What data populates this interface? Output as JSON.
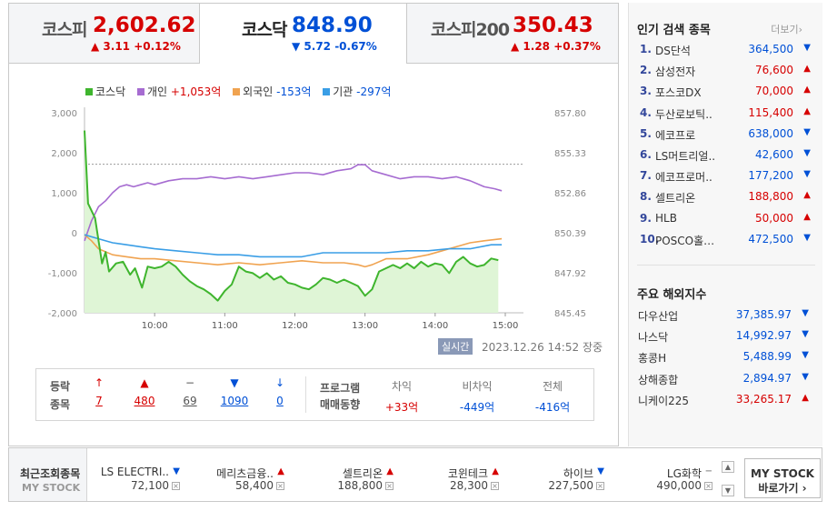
{
  "tabs": [
    {
      "name": "코스피",
      "value": "2,602.62",
      "change": "▲ 3.11 +0.12%",
      "dir": "up"
    },
    {
      "name": "코스닥",
      "value": "848.90",
      "change": "▼ 5.72 -0.67%",
      "dir": "down"
    },
    {
      "name": "코스피200",
      "value": "350.43",
      "change": "▲ 1.28 +0.37%",
      "dir": "up"
    }
  ],
  "legend": [
    {
      "label": "코스닥",
      "extra": "",
      "color": "#3fb52e"
    },
    {
      "label": "개인",
      "extra": "+1,053억",
      "color": "#a66cd1",
      "extra_dir": "up"
    },
    {
      "label": "외국인",
      "extra": "-153억",
      "color": "#f0a350",
      "extra_dir": "down"
    },
    {
      "label": "기관",
      "extra": "-297억",
      "color": "#3a9ee6",
      "extra_dir": "down"
    }
  ],
  "chart_data": {
    "type": "line",
    "left_axis": {
      "ticks": [
        "3,000",
        "2,000",
        "1,000",
        "0",
        "-1,000",
        "-2,000"
      ],
      "range": [
        -2000,
        3000
      ]
    },
    "right_axis": {
      "ticks": [
        "857.80",
        "855.33",
        "852.86",
        "850.39",
        "847.92",
        "845.45"
      ],
      "range": [
        845.45,
        857.8
      ]
    },
    "x_ticks": [
      "10:00",
      "11:00",
      "12:00",
      "13:00",
      "14:00",
      "15:00"
    ],
    "previous_close": 854.62,
    "series": [
      {
        "name": "코스닥",
        "axis": "right",
        "color": "#3fb52e",
        "values": [
          [
            9.0,
            856.7
          ],
          [
            9.05,
            852.2
          ],
          [
            9.15,
            851.3
          ],
          [
            9.25,
            848.5
          ],
          [
            9.3,
            849.2
          ],
          [
            9.35,
            848.0
          ],
          [
            9.45,
            848.5
          ],
          [
            9.55,
            848.6
          ],
          [
            9.65,
            847.8
          ],
          [
            9.72,
            848.2
          ],
          [
            9.82,
            847.0
          ],
          [
            9.9,
            848.3
          ],
          [
            10.0,
            848.2
          ],
          [
            10.1,
            848.3
          ],
          [
            10.2,
            848.6
          ],
          [
            10.3,
            848.3
          ],
          [
            10.4,
            847.8
          ],
          [
            10.5,
            847.4
          ],
          [
            10.6,
            847.1
          ],
          [
            10.7,
            846.9
          ],
          [
            10.8,
            846.6
          ],
          [
            10.9,
            846.2
          ],
          [
            11.0,
            846.8
          ],
          [
            11.1,
            847.2
          ],
          [
            11.2,
            848.3
          ],
          [
            11.3,
            848.0
          ],
          [
            11.4,
            847.9
          ],
          [
            11.5,
            847.6
          ],
          [
            11.6,
            847.9
          ],
          [
            11.7,
            847.5
          ],
          [
            11.8,
            847.7
          ],
          [
            11.9,
            847.3
          ],
          [
            12.0,
            847.2
          ],
          [
            12.1,
            847.0
          ],
          [
            12.2,
            846.9
          ],
          [
            12.3,
            847.2
          ],
          [
            12.4,
            847.6
          ],
          [
            12.5,
            847.5
          ],
          [
            12.6,
            847.3
          ],
          [
            12.7,
            847.5
          ],
          [
            12.8,
            847.3
          ],
          [
            12.9,
            847.1
          ],
          [
            13.0,
            846.5
          ],
          [
            13.1,
            846.9
          ],
          [
            13.2,
            848.0
          ],
          [
            13.3,
            848.2
          ],
          [
            13.4,
            848.4
          ],
          [
            13.5,
            848.2
          ],
          [
            13.6,
            848.5
          ],
          [
            13.7,
            848.2
          ],
          [
            13.8,
            848.6
          ],
          [
            13.9,
            848.3
          ],
          [
            14.0,
            848.5
          ],
          [
            14.1,
            848.4
          ],
          [
            14.2,
            847.9
          ],
          [
            14.3,
            848.6
          ],
          [
            14.4,
            848.9
          ],
          [
            14.5,
            848.5
          ],
          [
            14.6,
            848.3
          ],
          [
            14.7,
            848.4
          ],
          [
            14.8,
            848.8
          ],
          [
            14.9,
            848.7
          ]
        ]
      },
      {
        "name": "개인",
        "axis": "left",
        "color": "#a66cd1",
        "values": [
          [
            9.0,
            -200
          ],
          [
            9.1,
            300
          ],
          [
            9.2,
            650
          ],
          [
            9.3,
            800
          ],
          [
            9.4,
            1000
          ],
          [
            9.5,
            1150
          ],
          [
            9.6,
            1200
          ],
          [
            9.7,
            1150
          ],
          [
            9.8,
            1200
          ],
          [
            9.9,
            1250
          ],
          [
            10.0,
            1200
          ],
          [
            10.2,
            1300
          ],
          [
            10.4,
            1350
          ],
          [
            10.6,
            1350
          ],
          [
            10.8,
            1400
          ],
          [
            11.0,
            1350
          ],
          [
            11.2,
            1400
          ],
          [
            11.4,
            1350
          ],
          [
            11.6,
            1400
          ],
          [
            11.8,
            1450
          ],
          [
            12.0,
            1500
          ],
          [
            12.2,
            1500
          ],
          [
            12.4,
            1450
          ],
          [
            12.6,
            1550
          ],
          [
            12.8,
            1600
          ],
          [
            12.9,
            1700
          ],
          [
            13.0,
            1700
          ],
          [
            13.1,
            1550
          ],
          [
            13.3,
            1450
          ],
          [
            13.5,
            1350
          ],
          [
            13.7,
            1400
          ],
          [
            13.9,
            1400
          ],
          [
            14.1,
            1350
          ],
          [
            14.3,
            1400
          ],
          [
            14.5,
            1300
          ],
          [
            14.7,
            1150
          ],
          [
            14.85,
            1100
          ],
          [
            14.95,
            1050
          ]
        ]
      },
      {
        "name": "외국인",
        "axis": "left",
        "color": "#f0a350",
        "values": [
          [
            9.0,
            -50
          ],
          [
            9.1,
            -200
          ],
          [
            9.2,
            -400
          ],
          [
            9.4,
            -550
          ],
          [
            9.6,
            -600
          ],
          [
            9.8,
            -650
          ],
          [
            10.0,
            -650
          ],
          [
            10.3,
            -700
          ],
          [
            10.6,
            -750
          ],
          [
            10.9,
            -800
          ],
          [
            11.2,
            -750
          ],
          [
            11.5,
            -800
          ],
          [
            11.8,
            -750
          ],
          [
            12.1,
            -700
          ],
          [
            12.4,
            -750
          ],
          [
            12.7,
            -750
          ],
          [
            12.9,
            -800
          ],
          [
            13.0,
            -850
          ],
          [
            13.1,
            -800
          ],
          [
            13.3,
            -650
          ],
          [
            13.6,
            -650
          ],
          [
            13.9,
            -550
          ],
          [
            14.1,
            -450
          ],
          [
            14.3,
            -350
          ],
          [
            14.5,
            -250
          ],
          [
            14.7,
            -200
          ],
          [
            14.95,
            -150
          ]
        ]
      },
      {
        "name": "기관",
        "axis": "left",
        "color": "#3a9ee6",
        "values": [
          [
            9.0,
            -50
          ],
          [
            9.2,
            -150
          ],
          [
            9.4,
            -250
          ],
          [
            9.6,
            -300
          ],
          [
            9.8,
            -350
          ],
          [
            10.0,
            -400
          ],
          [
            10.3,
            -450
          ],
          [
            10.6,
            -500
          ],
          [
            10.9,
            -550
          ],
          [
            11.2,
            -550
          ],
          [
            11.5,
            -600
          ],
          [
            11.8,
            -600
          ],
          [
            12.1,
            -600
          ],
          [
            12.4,
            -500
          ],
          [
            12.7,
            -500
          ],
          [
            13.0,
            -500
          ],
          [
            13.3,
            -500
          ],
          [
            13.6,
            -450
          ],
          [
            13.9,
            -450
          ],
          [
            14.2,
            -400
          ],
          [
            14.5,
            -400
          ],
          [
            14.8,
            -300
          ],
          [
            14.95,
            -300
          ]
        ]
      }
    ]
  },
  "realtime_badge": "실시간",
  "timestamp": "2023.12.26 14:52",
  "market_status": "장중",
  "stats": {
    "label1": "등락",
    "label2": "종목",
    "cols": [
      {
        "arrow": "↑",
        "value": "7",
        "dir": "up"
      },
      {
        "arrow": "▲",
        "value": "480",
        "dir": "up"
      },
      {
        "arrow": "−",
        "value": "69",
        "dir": "flat"
      },
      {
        "arrow": "▼",
        "value": "1090",
        "dir": "down"
      },
      {
        "arrow": "↓",
        "value": "0",
        "dir": "down"
      }
    ],
    "program_label1": "프로그램",
    "program_label2": "매매동향",
    "program": [
      {
        "head": "차익",
        "value": "+33억",
        "dir": "up"
      },
      {
        "head": "비차익",
        "value": "-449억",
        "dir": "down"
      },
      {
        "head": "전체",
        "value": "-416억",
        "dir": "down"
      }
    ]
  },
  "popular": {
    "title": "인기 검색 종목",
    "more": "더보기",
    "items": [
      {
        "rank": "1.",
        "name": "DS단석",
        "price": "364,500",
        "dir": "down"
      },
      {
        "rank": "2.",
        "name": "삼성전자",
        "price": "76,600",
        "dir": "up"
      },
      {
        "rank": "3.",
        "name": "포스코DX",
        "price": "70,000",
        "dir": "up"
      },
      {
        "rank": "4.",
        "name": "두산로보틱..",
        "price": "115,400",
        "dir": "up"
      },
      {
        "rank": "5.",
        "name": "에코프로",
        "price": "638,000",
        "dir": "down"
      },
      {
        "rank": "6.",
        "name": "LS머트리얼..",
        "price": "42,600",
        "dir": "down"
      },
      {
        "rank": "7.",
        "name": "에코프로머..",
        "price": "177,200",
        "dir": "down"
      },
      {
        "rank": "8.",
        "name": "셀트리온",
        "price": "188,800",
        "dir": "up"
      },
      {
        "rank": "9.",
        "name": "HLB",
        "price": "50,000",
        "dir": "up"
      },
      {
        "rank": "10.",
        "name": "POSCO홀…",
        "price": "472,500",
        "dir": "down"
      }
    ]
  },
  "world": {
    "title": "주요 해외지수",
    "items": [
      {
        "name": "다우산업",
        "value": "37,385.97",
        "dir": "down"
      },
      {
        "name": "나스닥",
        "value": "14,992.97",
        "dir": "down"
      },
      {
        "name": "홍콩H",
        "value": "5,488.99",
        "dir": "down"
      },
      {
        "name": "상해종합",
        "value": "2,894.97",
        "dir": "down"
      },
      {
        "name": "니케이225",
        "value": "33,265.17",
        "dir": "up"
      }
    ]
  },
  "recent": {
    "label1": "최근조회종목",
    "label2": "MY STOCK",
    "items": [
      {
        "name": "LS ELECTRI..",
        "price": "72,100",
        "dir": "down"
      },
      {
        "name": "메리츠금융..",
        "price": "58,400",
        "dir": "up"
      },
      {
        "name": "셀트리온",
        "price": "188,800",
        "dir": "up"
      },
      {
        "name": "코윈테크",
        "price": "28,300",
        "dir": "up"
      },
      {
        "name": "하이브",
        "price": "227,500",
        "dir": "down"
      },
      {
        "name": "LG화학",
        "price": "490,000",
        "dir": "flat"
      }
    ],
    "mystock_line1": "MY STOCK",
    "mystock_line2": "바로가기 ›"
  }
}
